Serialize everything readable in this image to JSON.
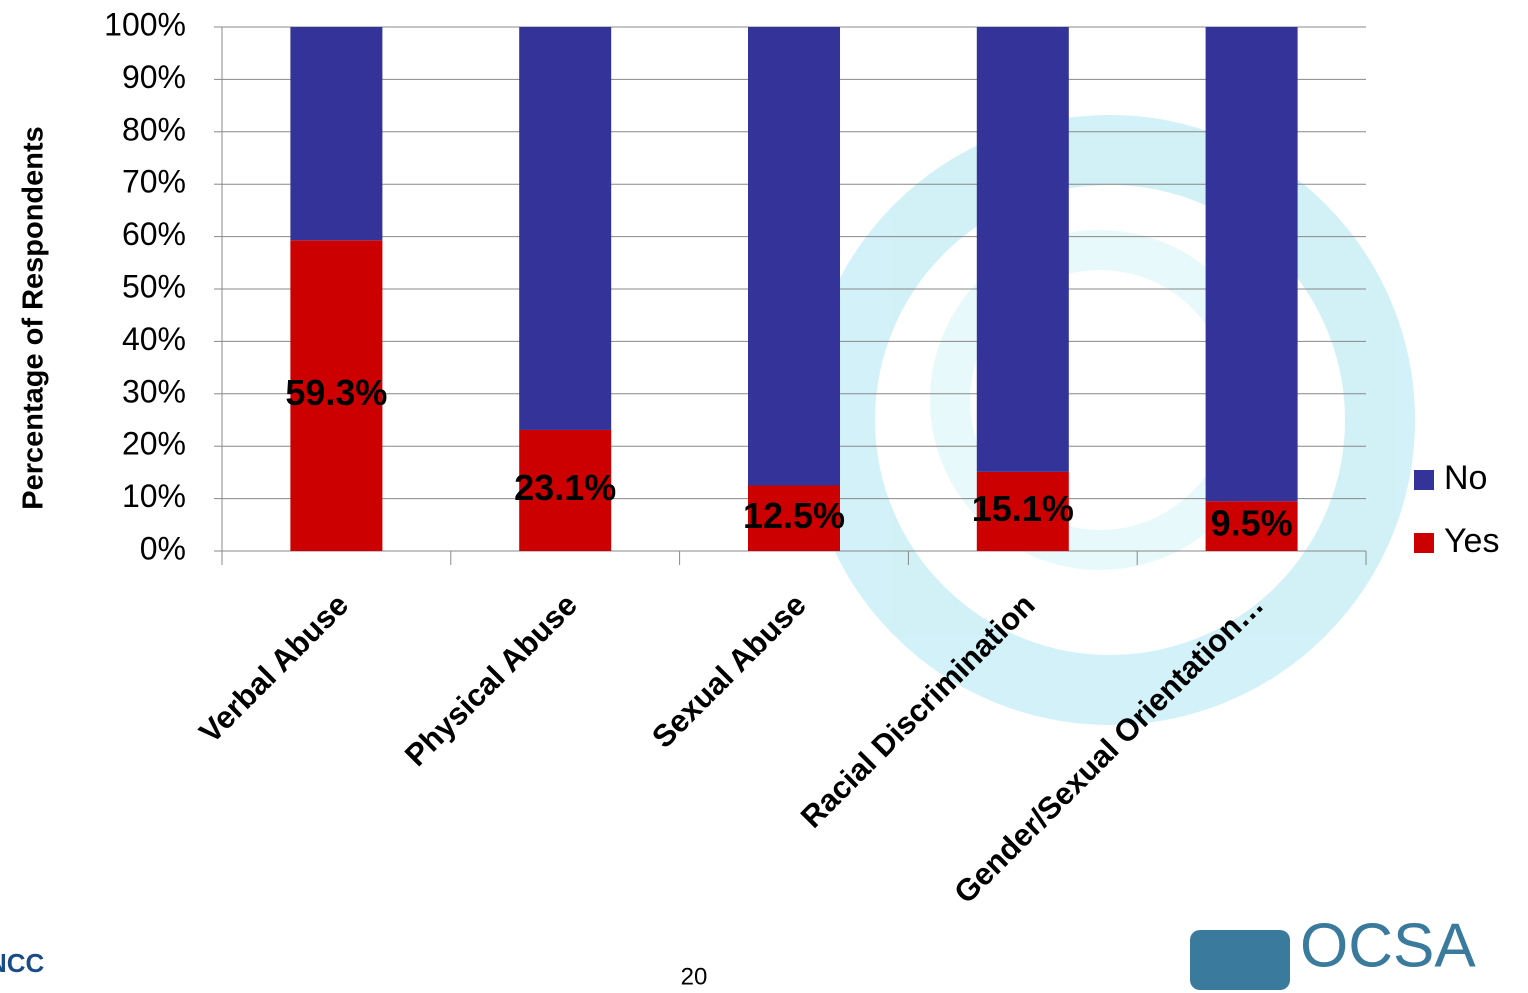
{
  "chart_data": {
    "type": "stacked_bar",
    "y_axis_label": "Percentage of Respondents",
    "categories": [
      "Verbal Abuse",
      "Physical Abuse",
      "Sexual Abuse",
      "Racial Discrimination",
      "Gender/Sexual Orientation…"
    ],
    "series": [
      {
        "name": "Yes",
        "color": "#cc0000",
        "values": [
          59.3,
          23.1,
          12.5,
          15.1,
          9.5
        ],
        "value_labels": [
          "59.3%",
          "23.1%",
          "12.5%",
          "15.1%",
          "9.5%"
        ]
      },
      {
        "name": "No",
        "color": "#333399",
        "values": [
          40.7,
          76.9,
          87.5,
          84.9,
          90.5
        ]
      }
    ],
    "ylim": [
      0,
      100
    ],
    "yticks": [
      {
        "value": 0,
        "label": "0%"
      },
      {
        "value": 10,
        "label": "10%"
      },
      {
        "value": 20,
        "label": "20%"
      },
      {
        "value": 30,
        "label": "30%"
      },
      {
        "value": 40,
        "label": "40%"
      },
      {
        "value": 50,
        "label": "50%"
      },
      {
        "value": 60,
        "label": "60%"
      },
      {
        "value": 70,
        "label": "70%"
      },
      {
        "value": 80,
        "label": "80%"
      },
      {
        "value": 90,
        "label": "90%"
      },
      {
        "value": 100,
        "label": "100%"
      }
    ],
    "grid": true,
    "legend_position": "right"
  },
  "footer": {
    "page_number": "20",
    "logo_left": "NCC",
    "logo_right": "OCSA"
  }
}
